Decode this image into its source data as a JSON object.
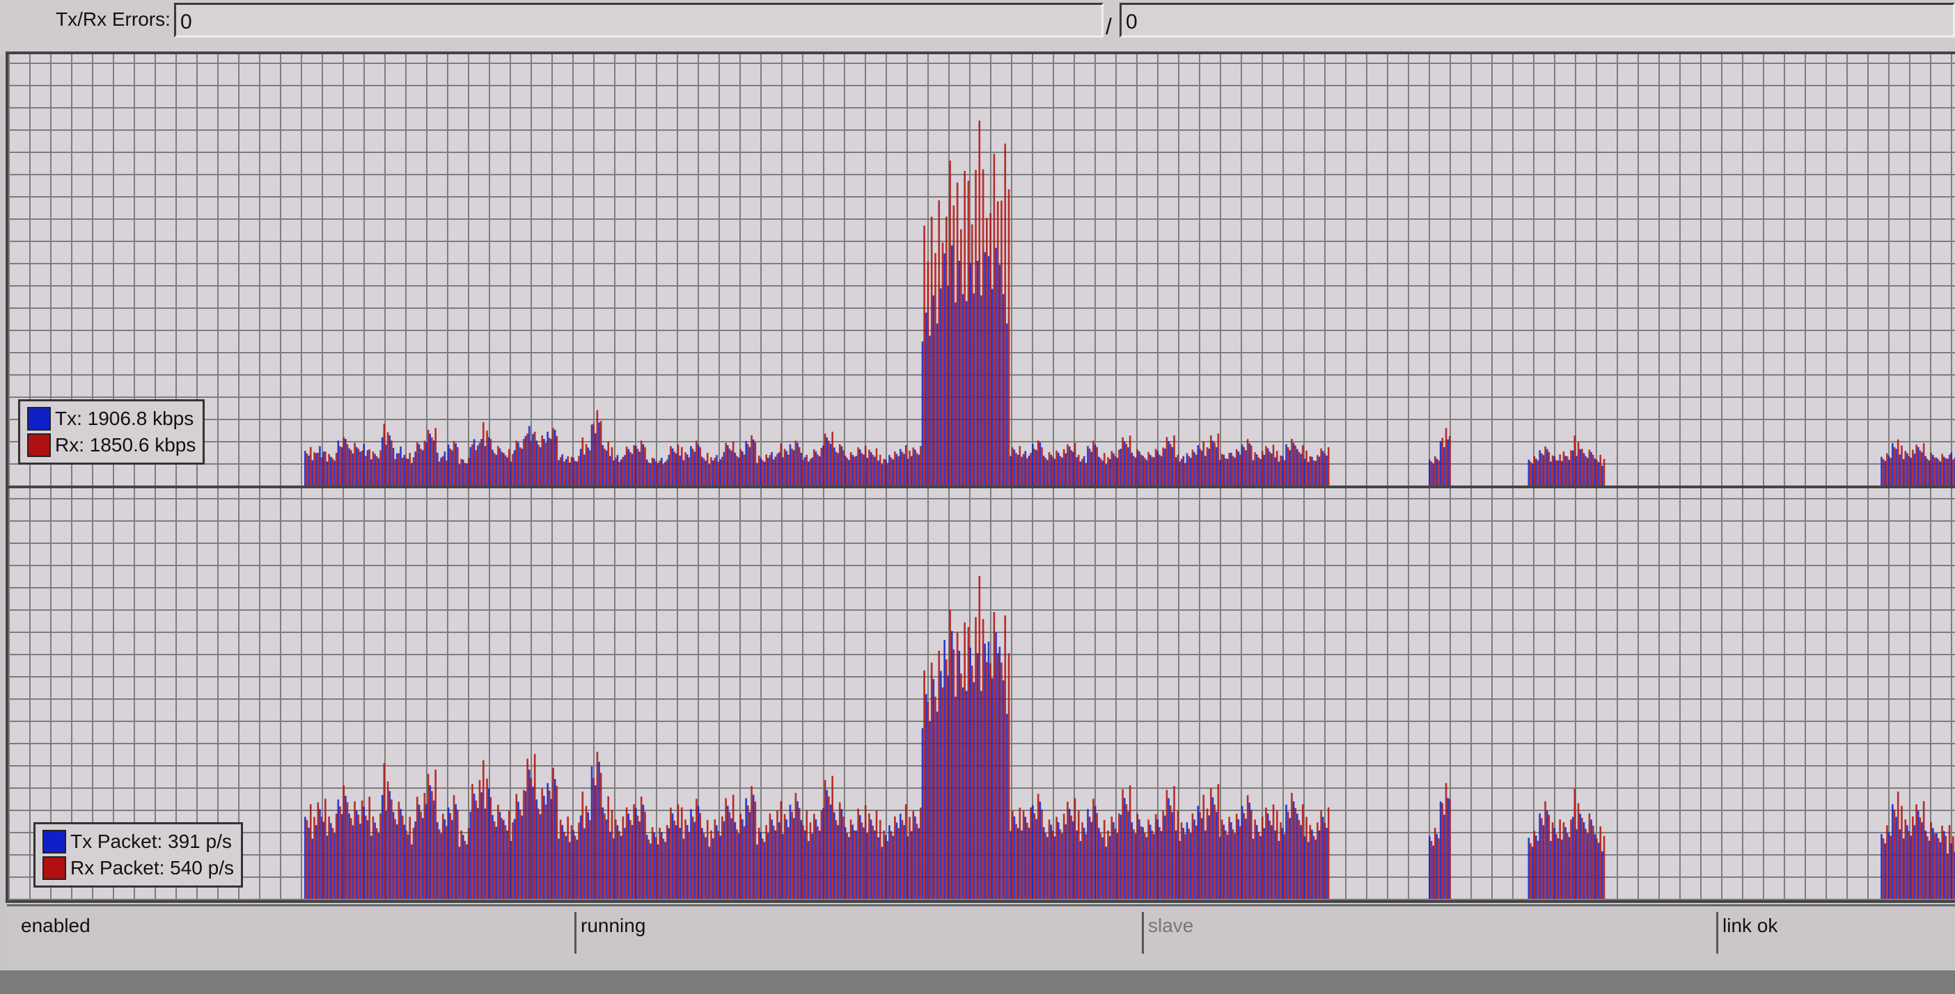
{
  "errors": {
    "label": "Tx/Rx Errors:",
    "tx_value": "0",
    "separator": "/",
    "rx_value": "0"
  },
  "colors": {
    "tx": "#1020c8",
    "rx": "#b01010",
    "grid": "#7d7d7d",
    "background": "#d8d3d8"
  },
  "traffic_legend": {
    "tx": "Tx:  1906.8 kbps",
    "rx": "Rx:  1850.6 kbps"
  },
  "packet_legend": {
    "tx": "Tx Packet:  391 p/s",
    "rx": "Rx Packet:  540 p/s"
  },
  "status": {
    "s1": "enabled",
    "s2": "running",
    "s3": "slave",
    "s4": "link ok"
  },
  "chart_data": [
    {
      "type": "bar",
      "grid": true,
      "legend": "bottom-left",
      "series": [
        {
          "name": "Tx",
          "unit": "kbps",
          "values": [
            1800,
            2200,
            1500,
            2600,
            2000,
            2400,
            1700,
            2900,
            2100,
            1600,
            2300,
            2700,
            1900,
            2200,
            1500,
            2500,
            2800,
            2000,
            1700,
            2400,
            3100,
            2600,
            2900,
            1800,
            1500,
            2200,
            3400,
            2100,
            1700,
            1900,
            2300,
            1400,
            1600,
            2000,
            1800,
            2200,
            1500,
            1700,
            2100,
            1900,
            2400,
            1600,
            1800,
            2000,
            2300,
            1700,
            1900,
            2500,
            2200,
            1600,
            2100,
            1800,
            1500,
            1700,
            1900,
            2000,
            9000,
            11000,
            12500,
            13000,
            12000,
            13500,
            12800,
            11500,
            2000,
            1800,
            2400,
            1600,
            1900,
            2100,
            1700,
            2200,
            1500,
            1800,
            2300,
            1900,
            1600,
            2000,
            2400,
            1700,
            1800,
            2100,
            2500,
            1600,
            1900,
            2200,
            1800,
            2000,
            1700,
            2300,
            1900,
            1600,
            1800,
            0,
            0,
            0,
            0,
            0,
            0,
            0,
            0,
            0,
            1500,
            2400,
            0,
            0,
            0,
            0,
            0,
            0,
            0,
            1500,
            1900,
            1700,
            1600,
            2100,
            1800,
            1400,
            0,
            0,
            0,
            0,
            0,
            0,
            0,
            0,
            0,
            0,
            0,
            0,
            0,
            0,
            0,
            0,
            0,
            0,
            0,
            0,
            0,
            0,
            0,
            0,
            0,
            1600,
            2200,
            1800,
            2000,
            1700,
            1500,
            1906.8
          ]
        },
        {
          "name": "Rx",
          "unit": "kbps",
          "values": [
            2000,
            1900,
            1700,
            2800,
            2300,
            2100,
            1900,
            3200,
            1800,
            1700,
            2500,
            3000,
            1700,
            2400,
            1600,
            2300,
            3300,
            2200,
            1900,
            2600,
            2800,
            2900,
            3100,
            1700,
            1600,
            2500,
            4200,
            2300,
            1600,
            2100,
            2600,
            1500,
            1500,
            2200,
            2000,
            2500,
            1700,
            1600,
            2300,
            2100,
            2700,
            1800,
            1700,
            2200,
            2500,
            1600,
            2100,
            2800,
            2400,
            1800,
            2300,
            2000,
            1600,
            1900,
            2100,
            2200,
            14000,
            16500,
            17500,
            18200,
            17000,
            19000,
            18500,
            17800,
            2200,
            1700,
            2600,
            1800,
            2100,
            2300,
            1600,
            2500,
            1700,
            2000,
            2600,
            2100,
            1800,
            2200,
            2700,
            1600,
            2000,
            2300,
            2900,
            1700,
            2100,
            2500,
            2000,
            2200,
            1800,
            2600,
            2100,
            1700,
            2000,
            0,
            0,
            0,
            0,
            0,
            0,
            0,
            0,
            0,
            1700,
            3100,
            0,
            0,
            0,
            0,
            0,
            0,
            0,
            1700,
            2100,
            1800,
            1900,
            2600,
            2000,
            1600,
            0,
            0,
            0,
            0,
            0,
            0,
            0,
            0,
            0,
            0,
            0,
            0,
            0,
            0,
            0,
            0,
            0,
            0,
            0,
            0,
            0,
            0,
            0,
            0,
            0,
            1800,
            2400,
            2000,
            2200,
            1900,
            1700,
            1850.6
          ]
        }
      ]
    },
    {
      "type": "bar",
      "grid": true,
      "legend": "bottom-left",
      "series": [
        {
          "name": "Tx Packet",
          "unit": "p/s",
          "values": [
            520,
            610,
            480,
            700,
            560,
            650,
            500,
            760,
            590,
            470,
            640,
            720,
            540,
            600,
            450,
            690,
            780,
            570,
            500,
            660,
            820,
            700,
            760,
            520,
            450,
            610,
            900,
            580,
            500,
            540,
            640,
            420,
            470,
            560,
            520,
            610,
            450,
            500,
            590,
            540,
            660,
            470,
            520,
            560,
            640,
            500,
            540,
            690,
            610,
            470,
            590,
            520,
            450,
            500,
            540,
            560,
            1300,
            1550,
            1700,
            1750,
            1650,
            1800,
            1750,
            1600,
            560,
            520,
            660,
            470,
            540,
            590,
            500,
            610,
            450,
            520,
            640,
            540,
            470,
            560,
            660,
            500,
            520,
            590,
            690,
            470,
            540,
            610,
            520,
            560,
            500,
            640,
            540,
            470,
            520,
            0,
            0,
            0,
            0,
            0,
            0,
            0,
            0,
            0,
            440,
            640,
            0,
            0,
            0,
            0,
            0,
            0,
            0,
            430,
            560,
            500,
            470,
            600,
            520,
            410,
            0,
            0,
            0,
            0,
            0,
            0,
            0,
            0,
            0,
            0,
            0,
            0,
            0,
            0,
            0,
            0,
            0,
            0,
            0,
            0,
            0,
            0,
            0,
            0,
            0,
            440,
            600,
            500,
            560,
            480,
            430,
            391
          ]
        },
        {
          "name": "Rx Packet",
          "unit": "p/s",
          "values": [
            600,
            680,
            540,
            800,
            640,
            720,
            560,
            860,
            660,
            520,
            720,
            820,
            600,
            680,
            500,
            780,
            880,
            640,
            560,
            740,
            920,
            780,
            860,
            580,
            500,
            680,
            1000,
            650,
            560,
            600,
            720,
            470,
            520,
            620,
            580,
            680,
            500,
            560,
            660,
            600,
            740,
            520,
            580,
            620,
            720,
            560,
            600,
            780,
            680,
            520,
            660,
            580,
            500,
            560,
            600,
            620,
            1500,
            1750,
            1900,
            1950,
            1850,
            2050,
            1950,
            1800,
            620,
            580,
            740,
            520,
            600,
            660,
            560,
            680,
            500,
            580,
            720,
            600,
            520,
            620,
            740,
            560,
            580,
            660,
            780,
            520,
            600,
            680,
            580,
            620,
            560,
            720,
            600,
            520,
            580,
            0,
            0,
            0,
            0,
            0,
            0,
            0,
            0,
            0,
            500,
            760,
            0,
            0,
            0,
            0,
            0,
            0,
            0,
            480,
            640,
            560,
            520,
            700,
            580,
            460,
            0,
            0,
            0,
            0,
            0,
            0,
            0,
            0,
            0,
            0,
            0,
            0,
            0,
            0,
            0,
            0,
            0,
            0,
            0,
            0,
            0,
            0,
            0,
            0,
            0,
            500,
            680,
            560,
            620,
            540,
            480,
            540
          ]
        }
      ]
    }
  ]
}
